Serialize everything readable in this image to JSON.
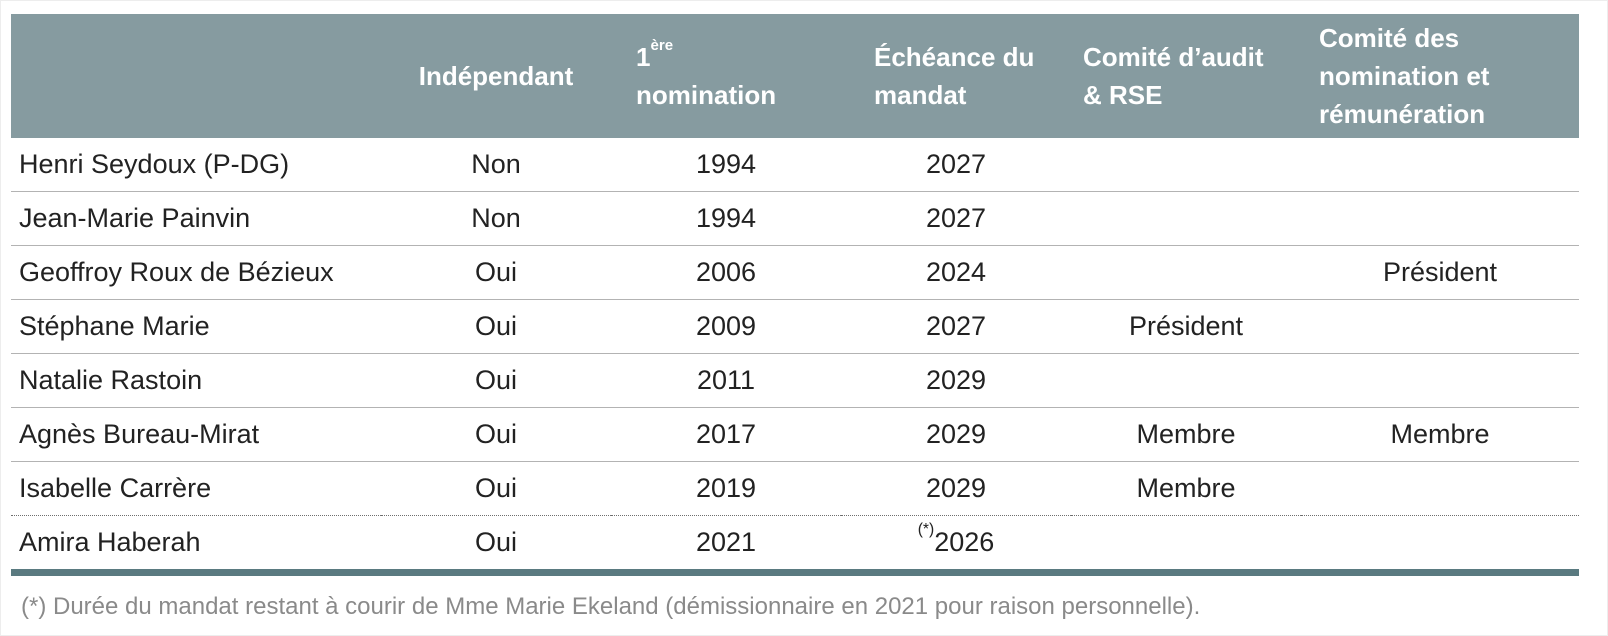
{
  "colors": {
    "header_bg": "#869BA0",
    "header_text": "#ffffff",
    "row_separator": "#b3b3b3",
    "dotted_separator": "#6f6f6f",
    "table_bottom_border": "#5A7A80",
    "body_text": "#222222",
    "footnote_text": "#8a8a8a"
  },
  "table": {
    "headers": {
      "name": "",
      "independant": "Indépendant",
      "nomination": {
        "num": "1",
        "sup": "ère",
        "rest": "nomination"
      },
      "echeance": "Échéance du\nmandat",
      "audit": "Comité d’audit\n& RSE",
      "remuneration": "Comité des\nnomination et\nrémunération"
    },
    "rows": [
      {
        "name": "Henri Seydoux (P-DG)",
        "independant": "Non",
        "nomination": "1994",
        "echeance": "2027",
        "audit": "",
        "remuneration": ""
      },
      {
        "name": "Jean-Marie Painvin",
        "independant": "Non",
        "nomination": "1994",
        "echeance": "2027",
        "audit": "",
        "remuneration": ""
      },
      {
        "name": "Geoffroy Roux de Bézieux",
        "independant": "Oui",
        "nomination": "2006",
        "echeance": "2024",
        "audit": "",
        "remuneration": "Président"
      },
      {
        "name": "Stéphane Marie",
        "independant": "Oui",
        "nomination": "2009",
        "echeance": "2027",
        "audit": "Président",
        "remuneration": ""
      },
      {
        "name": "Natalie Rastoin",
        "independant": "Oui",
        "nomination": "2011",
        "echeance": "2029",
        "audit": "",
        "remuneration": ""
      },
      {
        "name": "Agnès Bureau-Mirat",
        "independant": "Oui",
        "nomination": "2017",
        "echeance": "2029",
        "audit": "Membre",
        "remuneration": "Membre"
      },
      {
        "name": "Isabelle Carrère",
        "independant": "Oui",
        "nomination": "2019",
        "echeance": "2029",
        "audit": "Membre",
        "remuneration": ""
      },
      {
        "name": "Amira Haberah",
        "independant": "Oui",
        "nomination": "2021",
        "echeance": "2026",
        "echeance_sup": "(*)",
        "audit": "",
        "remuneration": "",
        "separator_top": "dotted"
      }
    ]
  },
  "footnote": "(*) Durée du mandat restant à courir de Mme Marie Ekeland (démissionnaire en 2021 pour raison personnelle)."
}
